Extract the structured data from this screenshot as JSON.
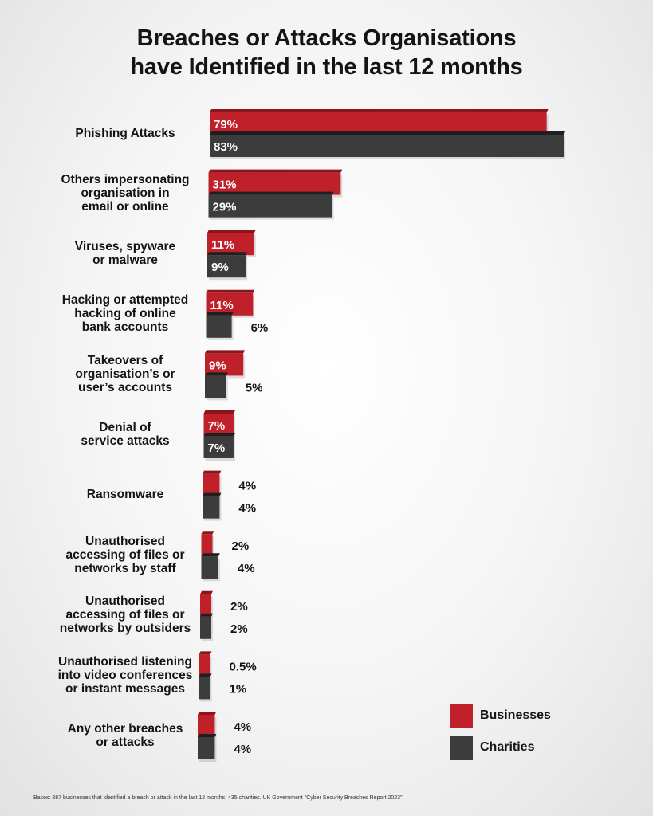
{
  "title_lines": [
    "Breaches or Attacks Organisations",
    "have Identified in the last 12 months"
  ],
  "footnote": "Bases: 887 businesses that identified a breach or attack in the last 12 months; 435 charities. UK Government \"Cyber Security Breaches Report 2023\".",
  "colors": {
    "businesses": "#c0202a",
    "charities": "#3c3c3c"
  },
  "chart_data": {
    "type": "bar",
    "orientation": "horizontal",
    "title": "Breaches or Attacks Organisations have Identified in the last 12 months",
    "categories": [
      [
        "Phishing Attacks"
      ],
      [
        "Others impersonating",
        "organisation in",
        "email or online"
      ],
      [
        "Viruses, spyware",
        "or malware"
      ],
      [
        "Hacking or attempted",
        "hacking of online",
        "bank accounts"
      ],
      [
        "Takeovers of",
        "organisation’s or",
        "user’s accounts"
      ],
      [
        "Denial of",
        "service attacks"
      ],
      [
        "Ransomware"
      ],
      [
        "Unauthorised",
        "accessing of files or",
        "networks by staff"
      ],
      [
        "Unauthorised",
        "accessing of files or",
        "networks by outsiders"
      ],
      [
        "Unauthorised listening",
        "into video conferences",
        "or instant messages"
      ],
      [
        "Any other breaches",
        "or attacks"
      ]
    ],
    "series": [
      {
        "name": "Businesses",
        "values": [
          79,
          31,
          11,
          11,
          9,
          7,
          4,
          2,
          2,
          0.5,
          4
        ],
        "labels": [
          "79%",
          "31%",
          "11%",
          "11%",
          "9%",
          "7%",
          "4%",
          "2%",
          "2%",
          "0.5%",
          "4%"
        ]
      },
      {
        "name": "Charities",
        "values": [
          83,
          29,
          9,
          6,
          5,
          7,
          4,
          4,
          2,
          1,
          4
        ],
        "labels": [
          "83%",
          "29%",
          "9%",
          "6%",
          "5%",
          "7%",
          "4%",
          "4%",
          "2%",
          "1%",
          "4%"
        ]
      }
    ],
    "legend": [
      "Businesses",
      "Charities"
    ],
    "legend_position": "bottom-right",
    "grid": false
  }
}
